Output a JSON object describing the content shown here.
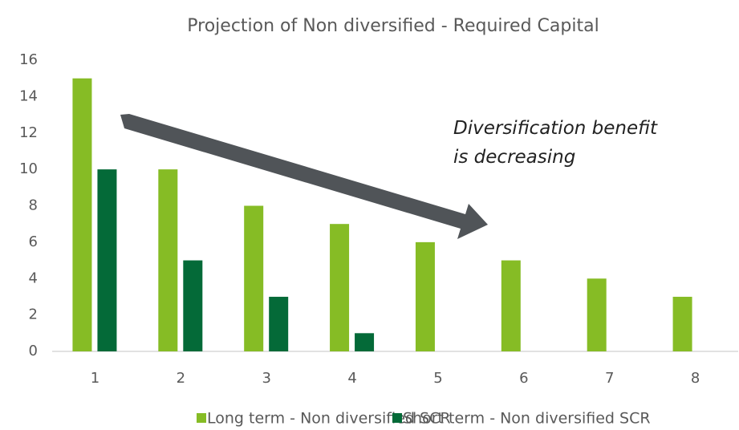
{
  "chart_data": {
    "type": "bar",
    "title": "Projection of Non diversified - Required Capital",
    "categories": [
      "1",
      "2",
      "3",
      "4",
      "5",
      "6",
      "7",
      "8"
    ],
    "series": [
      {
        "name": "Long term - Non diversified SCR",
        "color": "#86bc25",
        "values": [
          15,
          10,
          8,
          7,
          6,
          5,
          4,
          3
        ]
      },
      {
        "name": "Short term - Non diversified SCR",
        "color": "#046a38",
        "values": [
          10,
          5,
          3,
          1,
          null,
          null,
          null,
          null
        ]
      }
    ],
    "ylim": [
      0,
      16
    ],
    "yticks": [
      0,
      2,
      4,
      6,
      8,
      10,
      12,
      14,
      16
    ],
    "grid": false,
    "annotation": [
      "Diversification benefit",
      "is decreasing"
    ],
    "legend": "bottom"
  }
}
